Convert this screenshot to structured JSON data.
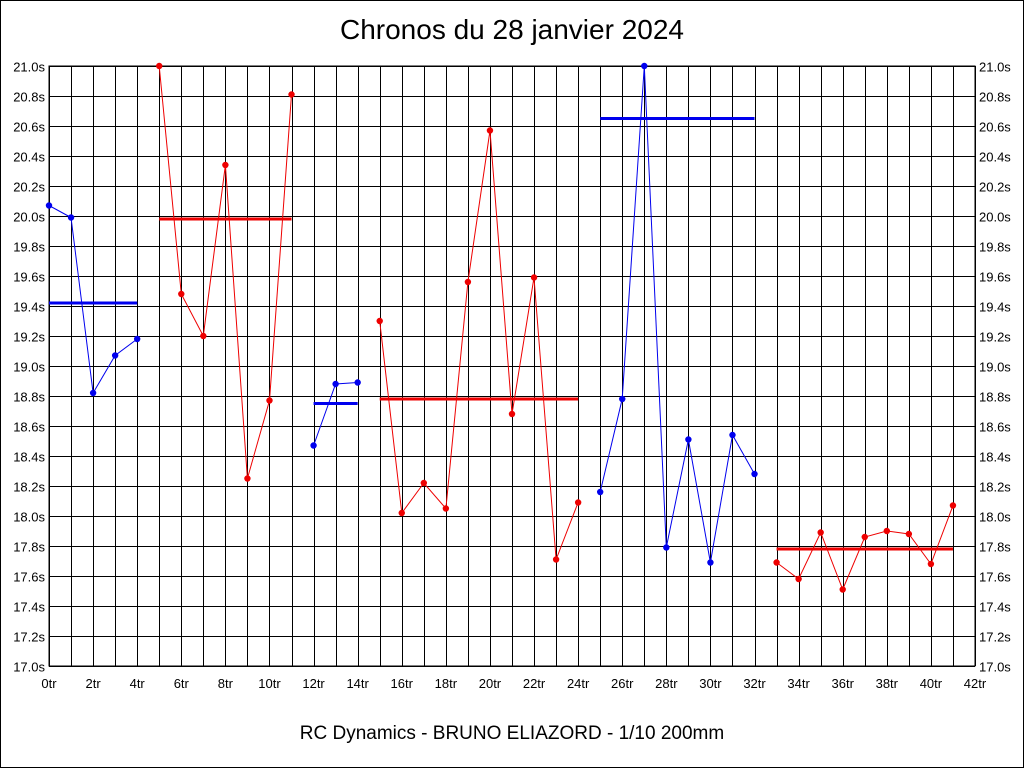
{
  "chart_data": {
    "type": "line",
    "title": "Chronos du 28 janvier 2024",
    "subtitle": "RC Dynamics - BRUNO ELIAZORD - 1/10 200mm",
    "xlim": [
      0,
      42
    ],
    "ylim": [
      17.0,
      21.0
    ],
    "x_ticks": [
      0,
      2,
      4,
      6,
      8,
      10,
      12,
      14,
      16,
      18,
      20,
      22,
      24,
      26,
      28,
      30,
      32,
      34,
      36,
      38,
      40,
      42
    ],
    "x_tick_labels": [
      "0tr",
      "2tr",
      "4tr",
      "6tr",
      "8tr",
      "10tr",
      "12tr",
      "14tr",
      "16tr",
      "18tr",
      "20tr",
      "22tr",
      "24tr",
      "26tr",
      "28tr",
      "30tr",
      "32tr",
      "34tr",
      "36tr",
      "38tr",
      "40tr",
      "42tr"
    ],
    "y_ticks": [
      17.0,
      17.2,
      17.4,
      17.6,
      17.8,
      18.0,
      18.2,
      18.4,
      18.6,
      18.8,
      19.0,
      19.2,
      19.4,
      19.6,
      19.8,
      20.0,
      20.2,
      20.4,
      20.6,
      20.8,
      21.0
    ],
    "y_tick_labels": [
      "17.0s",
      "17.2s",
      "17.4s",
      "17.6s",
      "17.8s",
      "18.0s",
      "18.2s",
      "18.4s",
      "18.6s",
      "18.8s",
      "19.0s",
      "19.2s",
      "19.4s",
      "19.6s",
      "19.8s",
      "20.0s",
      "20.2s",
      "20.4s",
      "20.6s",
      "20.8s",
      "21.0s"
    ],
    "grid": true,
    "colors": {
      "red": "#ee0000",
      "blue": "#0000ee"
    },
    "series": [
      {
        "color": "red",
        "x": [
          5,
          6,
          7,
          8,
          9,
          10,
          11
        ],
        "values": [
          21.0,
          19.48,
          19.2,
          20.34,
          18.25,
          18.77,
          20.81
        ],
        "mean": 19.98,
        "mean_x": [
          5,
          11
        ]
      },
      {
        "color": "blue",
        "x": [
          0,
          1,
          2,
          3,
          4
        ],
        "values": [
          20.07,
          19.99,
          18.82,
          19.07,
          19.18
        ],
        "mean": 19.42,
        "mean_x": [
          0,
          4
        ]
      },
      {
        "color": "blue",
        "x": [
          12,
          13,
          14
        ],
        "values": [
          18.47,
          18.88,
          18.89
        ],
        "mean": 18.75,
        "mean_x": [
          12,
          14
        ]
      },
      {
        "color": "red",
        "x": [
          15,
          16,
          17,
          18,
          19,
          20,
          21,
          22,
          23,
          24
        ],
        "values": [
          19.3,
          18.02,
          18.22,
          18.05,
          19.56,
          20.57,
          18.68,
          19.59,
          17.71,
          18.09
        ],
        "mean": 18.78,
        "mean_x": [
          15,
          24
        ]
      },
      {
        "color": "blue",
        "x": [
          25,
          26,
          27,
          28,
          29,
          30,
          31,
          32
        ],
        "values": [
          18.16,
          18.78,
          21.0,
          17.79,
          18.51,
          17.69,
          18.54,
          18.28
        ],
        "mean": 20.65,
        "mean_x": [
          25,
          32
        ]
      },
      {
        "color": "red",
        "x": [
          33,
          34,
          35,
          36,
          37,
          38,
          39,
          40,
          41
        ],
        "values": [
          17.69,
          17.58,
          17.89,
          17.51,
          17.86,
          17.9,
          17.88,
          17.68,
          18.07
        ],
        "mean": 17.78,
        "mean_x": [
          33,
          41
        ]
      }
    ]
  }
}
